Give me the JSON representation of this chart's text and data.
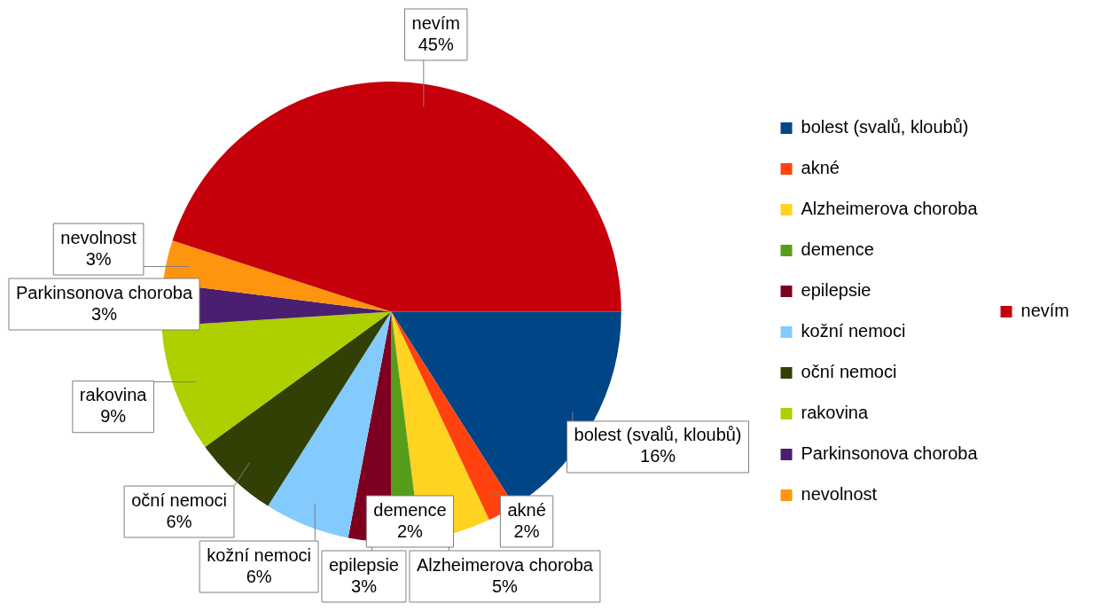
{
  "chart_data": {
    "type": "pie",
    "categories": [
      "bolest (svalů, kloubů)",
      "akné",
      "Alzheimerova choroba",
      "demence",
      "epilepsie",
      "kožní nemoci",
      "oční nemoci",
      "rakovina",
      "Parkinsonova choroba",
      "nevolnost",
      "nevím"
    ],
    "values": [
      16,
      2,
      5,
      2,
      3,
      6,
      6,
      9,
      3,
      3,
      45
    ],
    "value_labels": [
      "16%",
      "2%",
      "5%",
      "2%",
      "3%",
      "6%",
      "6%",
      "9%",
      "3%",
      "3%",
      "45%"
    ],
    "colors": [
      "#004586",
      "#ff420e",
      "#ffd320",
      "#579d1c",
      "#7e0021",
      "#83caff",
      "#314004",
      "#aecf00",
      "#4b1f6f",
      "#ff950e",
      "#c5000b"
    ],
    "legend": "right"
  }
}
